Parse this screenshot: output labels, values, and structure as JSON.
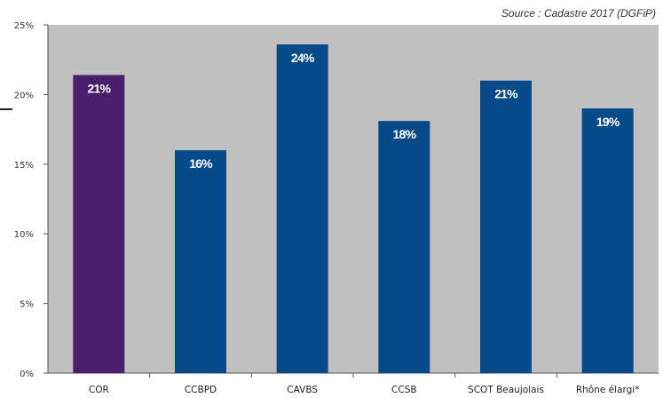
{
  "source": "Source : Cadastre 2017 (DGFiP)",
  "colors": {
    "plot_background": "#c0c0c0",
    "highlight_bar": "#4b1e6b",
    "bar": "#074a8a",
    "label_text": "#ffffff"
  },
  "chart_data": {
    "type": "bar",
    "title": "",
    "xlabel": "",
    "ylabel": "",
    "categories": [
      "COR",
      "CCBPD",
      "CAVBS",
      "CCSB",
      "SCOT Beaujolais",
      "Rhône élargi*"
    ],
    "values": [
      21.4,
      16.0,
      23.6,
      18.1,
      21.0,
      19.0
    ],
    "data_labels": [
      "21%",
      "16%",
      "24%",
      "18%",
      "21%",
      "19%"
    ],
    "highlight_index": 0,
    "ylim": [
      0,
      25
    ],
    "yticks": [
      0,
      5,
      10,
      15,
      20,
      25
    ],
    "ytick_labels": [
      "0%",
      "5%",
      "10%",
      "15%",
      "20%",
      "25%"
    ],
    "grid": false,
    "legend": "none"
  }
}
